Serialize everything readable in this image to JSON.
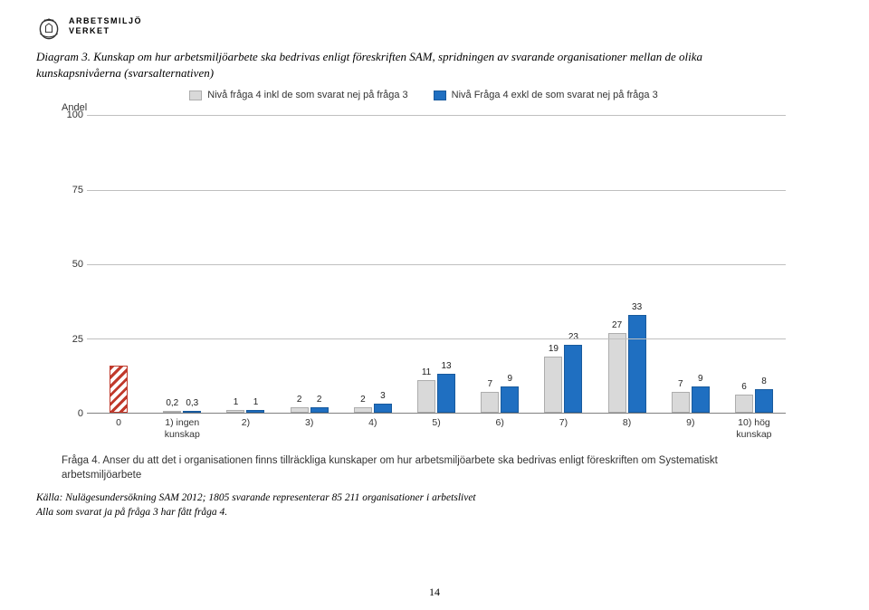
{
  "agency": {
    "line1": "ARBETSMILJÖ",
    "line2": "VERKET"
  },
  "caption": "Diagram 3. Kunskap om hur arbetsmiljöarbete ska bedrivas enligt föreskriften SAM, spridningen av svarande organisationer mellan de olika kunskapsnivåerna (svarsalternativen)",
  "chart": {
    "type": "bar",
    "y_title": "Andel",
    "ylim": [
      0,
      100
    ],
    "yticks": [
      0,
      25,
      50,
      75,
      100
    ],
    "grid_color": "#bfbfbf",
    "background": "#ffffff",
    "series": [
      {
        "label": "Nivå fråga 4 inkl de som svarat nej på fråga 3",
        "color": "#d9d9d9",
        "border": "#adadad"
      },
      {
        "label": "Nivå Fråga 4 exkl de som svarat nej på fråga 3",
        "color": "#1f6fc1",
        "border": "#185a9d"
      }
    ],
    "categories": [
      {
        "label": "0",
        "label2": ""
      },
      {
        "label": "1) ingen",
        "label2": "kunskap"
      },
      {
        "label": "2)",
        "label2": ""
      },
      {
        "label": "3)",
        "label2": ""
      },
      {
        "label": "4)",
        "label2": ""
      },
      {
        "label": "5)",
        "label2": ""
      },
      {
        "label": "6)",
        "label2": ""
      },
      {
        "label": "7)",
        "label2": ""
      },
      {
        "label": "8)",
        "label2": ""
      },
      {
        "label": "9)",
        "label2": ""
      },
      {
        "label": "10) hög",
        "label2": "kunskap"
      }
    ],
    "data": [
      {
        "a": 16,
        "b": null,
        "a_label": "16",
        "b_label": "",
        "hatched": true
      },
      {
        "a": 0.2,
        "b": 0.3,
        "a_label": "0,2",
        "b_label": "0,3"
      },
      {
        "a": 1,
        "b": 1,
        "a_label": "1",
        "b_label": "1"
      },
      {
        "a": 2,
        "b": 2,
        "a_label": "2",
        "b_label": "2"
      },
      {
        "a": 2,
        "b": 3,
        "a_label": "2",
        "b_label": "3"
      },
      {
        "a": 11,
        "b": 13,
        "a_label": "11",
        "b_label": "13"
      },
      {
        "a": 7,
        "b": 9,
        "a_label": "7",
        "b_label": "9"
      },
      {
        "a": 19,
        "b": 23,
        "a_label": "19",
        "b_label": "23"
      },
      {
        "a": 27,
        "b": 33,
        "a_label": "27",
        "b_label": "33"
      },
      {
        "a": 7,
        "b": 9,
        "a_label": "7",
        "b_label": "9"
      },
      {
        "a": 6,
        "b": 8,
        "a_label": "6",
        "b_label": "8"
      }
    ]
  },
  "question": "Fråga 4. Anser du att det i organisationen finns tillräckliga kunskaper om hur arbetsmiljöarbete ska bedrivas enligt föreskriften om Systematiskt arbetsmiljöarbete",
  "source": {
    "line1": "Källa: Nulägesundersökning SAM 2012; 1805 svarande representerar 85 211 organisationer i arbetslivet",
    "line2": "Alla som svarat ja på fråga 3 har fått fråga 4."
  },
  "page": "14"
}
